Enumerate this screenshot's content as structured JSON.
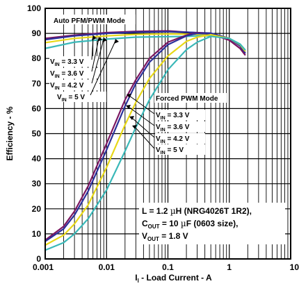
{
  "chart_data": {
    "type": "line",
    "title": "",
    "xlabel": {
      "main": "I",
      "sub": "l",
      "rest": " - Load Current - A"
    },
    "ylabel": "Efficiency - %",
    "xscale": "log",
    "xlim": [
      0.001,
      10
    ],
    "ylim": [
      0,
      100
    ],
    "xticks": [
      0.001,
      0.01,
      0.1,
      1,
      10
    ],
    "xtick_labels": [
      "0.001",
      "0.01",
      "0.1",
      "1",
      "10"
    ],
    "yticks": [
      0,
      10,
      20,
      30,
      40,
      50,
      60,
      70,
      80,
      90,
      100
    ],
    "ytick_labels": [
      "0",
      "10",
      "20",
      "30",
      "40",
      "50",
      "60",
      "70",
      "80",
      "90",
      "100"
    ],
    "grid": true,
    "colors": {
      "vin_3_3": "#7b1660",
      "vin_3_6": "#2b2f9a",
      "vin_4_2": "#e8d818",
      "vin_5": "#3ab8b8",
      "frame": "#000000",
      "grid": "#000000"
    },
    "annotations": {
      "pfm_title": "Auto PFM/PWM Mode",
      "pwm_title": "Forced PWM Mode",
      "pfm_labels": [
        {
          "pre": "V",
          "sub": "IN",
          "post": " = 3.3 V"
        },
        {
          "pre": "V",
          "sub": "IN",
          "post": " = 3.6 V"
        },
        {
          "pre": "V",
          "sub": "IN",
          "post": " = 4.2 V"
        },
        {
          "pre": "V",
          "sub": "IN",
          "post": " = 5 V"
        }
      ],
      "pwm_labels": [
        {
          "pre": "V",
          "sub": "IN",
          "post": " = 3.3 V"
        },
        {
          "pre": "V",
          "sub": "IN",
          "post": " = 3.6 V"
        },
        {
          "pre": "V",
          "sub": "IN",
          "post": " = 4.2 V"
        },
        {
          "pre": "V",
          "sub": "IN",
          "post": " = 5 V"
        }
      ],
      "conditions": [
        {
          "pre": "L = 1.2 ",
          "mu": "µ",
          "post": "H (NRG4026T 1R2),",
          "sub": ""
        },
        {
          "pre": "C",
          "sub": "OUT",
          "post": " = 10 ",
          "mu": "µ",
          "post2": "F (0603 size),"
        },
        {
          "pre": "V",
          "sub": "OUT",
          "post": " = 1.8 V"
        }
      ]
    },
    "series": [
      {
        "mode": "Auto PFM/PWM",
        "vin": "3.3 V",
        "color": "#7b1660",
        "x": [
          0.001,
          0.003,
          0.01,
          0.03,
          0.1,
          0.2,
          0.3,
          0.5,
          1,
          1.5,
          1.8
        ],
        "y": [
          88,
          89.3,
          90.3,
          90.8,
          91,
          90.5,
          90.2,
          90,
          87.3,
          84,
          81.5
        ]
      },
      {
        "mode": "Auto PFM/PWM",
        "vin": "3.6 V",
        "color": "#2b2f9a",
        "x": [
          0.001,
          0.003,
          0.01,
          0.03,
          0.1,
          0.2,
          0.3,
          0.5,
          1,
          1.5,
          1.8
        ],
        "y": [
          87.5,
          89,
          90,
          90.5,
          90.7,
          90.5,
          90.3,
          90.1,
          88,
          85,
          82.3
        ]
      },
      {
        "mode": "Auto PFM/PWM",
        "vin": "4.2 V",
        "color": "#e8d818",
        "x": [
          0.001,
          0.003,
          0.01,
          0.03,
          0.1,
          0.2,
          0.3,
          0.5,
          1,
          1.5,
          1.8
        ],
        "y": [
          86.3,
          88,
          89,
          89.6,
          89.8,
          89.7,
          89.6,
          89.5,
          88,
          85.5,
          83
        ]
      },
      {
        "mode": "Auto PFM/PWM",
        "vin": "5 V",
        "color": "#3ab8b8",
        "x": [
          0.001,
          0.003,
          0.01,
          0.03,
          0.1,
          0.2,
          0.3,
          0.5,
          1,
          1.5,
          1.8
        ],
        "y": [
          84,
          86.5,
          87.7,
          88.5,
          88.7,
          88.8,
          89,
          89,
          88,
          85.7,
          83.5
        ]
      },
      {
        "mode": "Forced PWM",
        "vin": "3.3 V",
        "color": "#7b1660",
        "x": [
          0.001,
          0.002,
          0.003,
          0.005,
          0.01,
          0.02,
          0.03,
          0.05,
          0.1,
          0.2,
          0.3,
          0.5,
          1,
          1.5,
          1.8
        ],
        "y": [
          7.5,
          13,
          19,
          29,
          46,
          63.5,
          71.5,
          80,
          86.5,
          89.3,
          90.3,
          89.7,
          87.3,
          84,
          81.5
        ]
      },
      {
        "mode": "Forced PWM",
        "vin": "3.6 V",
        "color": "#2b2f9a",
        "x": [
          0.001,
          0.002,
          0.003,
          0.005,
          0.01,
          0.02,
          0.03,
          0.05,
          0.1,
          0.2,
          0.3,
          0.5,
          1,
          1.5,
          1.8
        ],
        "y": [
          7,
          12,
          17.5,
          27,
          43.5,
          61,
          70,
          78.5,
          85.5,
          89,
          90,
          89.8,
          88,
          85,
          82.3
        ]
      },
      {
        "mode": "Forced PWM",
        "vin": "4.2 V",
        "color": "#e8d818",
        "x": [
          0.001,
          0.002,
          0.003,
          0.005,
          0.01,
          0.02,
          0.03,
          0.05,
          0.1,
          0.2,
          0.3,
          0.5,
          1,
          1.5,
          1.8
        ],
        "y": [
          5.5,
          9.5,
          14,
          21.5,
          36.5,
          53.5,
          62.5,
          72,
          81,
          86.8,
          88.5,
          89.5,
          88,
          85.5,
          83
        ]
      },
      {
        "mode": "Forced PWM",
        "vin": "5 V",
        "color": "#3ab8b8",
        "x": [
          0.001,
          0.002,
          0.003,
          0.005,
          0.01,
          0.02,
          0.03,
          0.05,
          0.1,
          0.2,
          0.3,
          0.5,
          1,
          1.5,
          1.8
        ],
        "y": [
          3.5,
          6.5,
          10,
          16,
          27.5,
          43,
          52.5,
          63.5,
          75.5,
          83.5,
          86.5,
          88.8,
          88,
          85.7,
          83.5
        ]
      }
    ]
  }
}
